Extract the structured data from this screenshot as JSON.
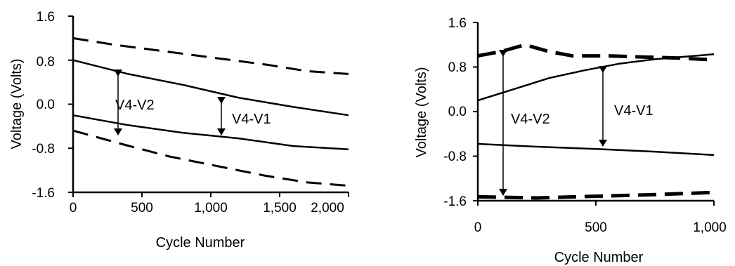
{
  "chart_data": [
    {
      "type": "line",
      "xlabel": "Cycle Number",
      "ylabel": "Voltage (Volts)",
      "xlim": [
        0,
        2000
      ],
      "ylim": [
        -1.6,
        1.6
      ],
      "x_ticks": [
        "0",
        "500",
        "1,000",
        "1,500",
        "2,000"
      ],
      "y_ticks": [
        "1.6",
        "0.8",
        "0.0",
        "-0.8",
        "-1.6"
      ],
      "grid": false,
      "series": [
        {
          "style": "dashed",
          "points": [
            [
              0,
              1.2
            ],
            [
              300,
              1.08
            ],
            [
              700,
              0.95
            ],
            [
              1000,
              0.85
            ],
            [
              1400,
              0.72
            ],
            [
              1700,
              0.6
            ],
            [
              2000,
              0.55
            ]
          ]
        },
        {
          "style": "solid",
          "points": [
            [
              0,
              0.8
            ],
            [
              400,
              0.55
            ],
            [
              800,
              0.35
            ],
            [
              1200,
              0.12
            ],
            [
              1600,
              -0.05
            ],
            [
              2000,
              -0.2
            ]
          ]
        },
        {
          "style": "solid",
          "points": [
            [
              0,
              -0.2
            ],
            [
              400,
              -0.38
            ],
            [
              800,
              -0.52
            ],
            [
              1200,
              -0.62
            ],
            [
              1600,
              -0.76
            ],
            [
              2000,
              -0.82
            ]
          ]
        },
        {
          "style": "dashed",
          "points": [
            [
              0,
              -0.48
            ],
            [
              350,
              -0.72
            ],
            [
              700,
              -0.95
            ],
            [
              1000,
              -1.1
            ],
            [
              1400,
              -1.3
            ],
            [
              1700,
              -1.42
            ],
            [
              2000,
              -1.48
            ]
          ]
        }
      ],
      "annotations": [
        {
          "text": "V4-V2",
          "x": 300,
          "y": 0.0
        },
        {
          "text": "V4-V1",
          "x": 1180,
          "y": -0.1
        }
      ]
    },
    {
      "type": "line",
      "xlabel": "Cycle Number",
      "ylabel": "Voltage (Volts)",
      "xlim": [
        0,
        1000
      ],
      "ylim": [
        -1.6,
        1.6
      ],
      "x_ticks": [
        "0",
        "500",
        "1,000"
      ],
      "y_ticks": [
        "1.6",
        "0.8",
        "0.0",
        "-0.8",
        "-1.6"
      ],
      "grid": false,
      "series": [
        {
          "style": "dashed",
          "points": [
            [
              0,
              1.0
            ],
            [
              100,
              1.08
            ],
            [
              200,
              1.2
            ],
            [
              300,
              1.08
            ],
            [
              400,
              1.0
            ],
            [
              550,
              1.0
            ],
            [
              700,
              0.98
            ],
            [
              850,
              0.96
            ],
            [
              1000,
              0.93
            ]
          ]
        },
        {
          "style": "solid",
          "points": [
            [
              0,
              0.2
            ],
            [
              150,
              0.4
            ],
            [
              300,
              0.6
            ],
            [
              450,
              0.74
            ],
            [
              600,
              0.86
            ],
            [
              750,
              0.94
            ],
            [
              1000,
              1.03
            ]
          ]
        },
        {
          "style": "solid",
          "points": [
            [
              0,
              -0.58
            ],
            [
              250,
              -0.63
            ],
            [
              500,
              -0.67
            ],
            [
              750,
              -0.72
            ],
            [
              1000,
              -0.78
            ]
          ]
        },
        {
          "style": "dashed",
          "points": [
            [
              0,
              -1.53
            ],
            [
              250,
              -1.55
            ],
            [
              500,
              -1.52
            ],
            [
              750,
              -1.49
            ],
            [
              1000,
              -1.45
            ]
          ]
        }
      ],
      "annotations": [
        {
          "text": "V4-V2",
          "x": 180,
          "y": 0.0
        },
        {
          "text": "V4-V1",
          "x": 560,
          "y": 0.0
        }
      ]
    }
  ]
}
